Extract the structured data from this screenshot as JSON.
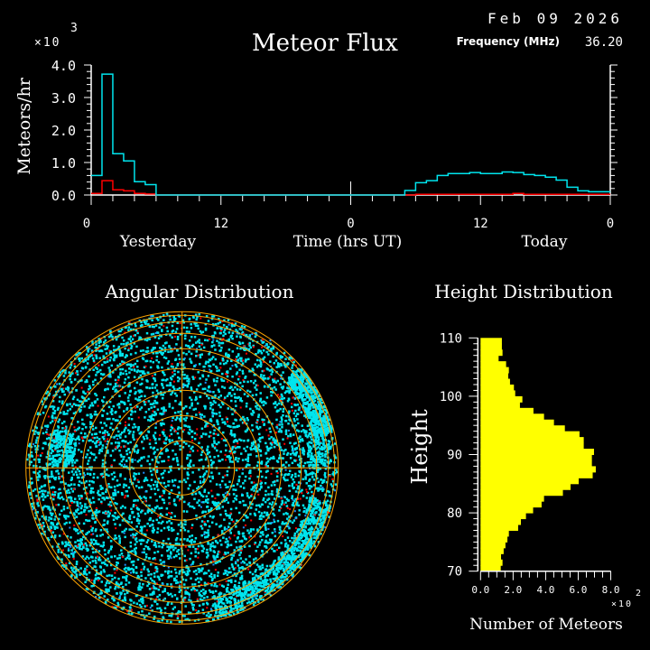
{
  "header": {
    "title": "Meteor Flux",
    "date": "Feb 09 2026",
    "frequency_label": "Frequency (MHz)",
    "frequency_value": "36.20",
    "y_multiplier": "×10",
    "y_multiplier_exp": "3"
  },
  "colors": {
    "background": "#000000",
    "total": "#00e5ee",
    "red_series": "#ff0000",
    "axis": "#ffffff",
    "rings": "#ffa500",
    "height_bars": "#ffff00",
    "blue_points": "#1e90ff"
  },
  "chart_data": [
    {
      "type": "line",
      "style": "step",
      "title": "Meteor Flux",
      "xlabel": "Time (hrs UT)",
      "ylabel": "Meteors/hr",
      "y_multiplier": "×10^3",
      "xlim": [
        0,
        48
      ],
      "ylim": [
        0,
        4.0
      ],
      "x_tick_labels": [
        "0",
        "12",
        "0",
        "12",
        "0"
      ],
      "x_ticks": [
        0,
        12,
        24,
        36,
        48
      ],
      "day_labels": [
        "Yesterday",
        "Today"
      ],
      "y_tick_labels": [
        "0.0",
        "1.0",
        "2.0",
        "3.0",
        "4.0"
      ],
      "grid": false,
      "bin_hours": 1,
      "series": [
        {
          "color": "#00e5ee",
          "values": [
            0.6,
            3.72,
            1.27,
            1.05,
            0.41,
            0.32,
            0,
            0,
            0,
            0,
            0,
            0,
            0,
            0,
            0,
            0,
            0,
            0,
            0,
            0,
            0,
            0,
            0,
            0,
            0,
            0,
            0,
            0,
            0,
            0.14,
            0.38,
            0.44,
            0.6,
            0.66,
            0.66,
            0.69,
            0.66,
            0.66,
            0.71,
            0.69,
            0.63,
            0.6,
            0.55,
            0.46,
            0.24,
            0.13,
            0.1,
            0.1
          ]
        },
        {
          "color": "#ff0000",
          "values": [
            0.05,
            0.44,
            0.16,
            0.13,
            0.05,
            0.03,
            0,
            0,
            0,
            0,
            0,
            0,
            0,
            0,
            0,
            0,
            0,
            0,
            0,
            0,
            0,
            0,
            0,
            0,
            0,
            0,
            0,
            0,
            0,
            0,
            0.02,
            0.02,
            0.02,
            0.02,
            0.02,
            0.02,
            0.02,
            0.02,
            0.02,
            0.05,
            0.02,
            0.02,
            0.02,
            0.02,
            0.02,
            0.02,
            0.02,
            0.02
          ]
        }
      ]
    },
    {
      "type": "scatter",
      "projection": "polar",
      "title": "Angular Distribution",
      "point_colors": [
        "#00e5ee",
        "#ff0000",
        "#1e90ff"
      ],
      "crosshair": true,
      "ring_color": "#ffa500"
    },
    {
      "type": "bar",
      "orientation": "horizontal",
      "title": "Height Distribution",
      "xlabel": "Number of Meteors",
      "ylabel": "Height",
      "x_multiplier": "×10^2",
      "xlim": [
        0,
        8.0
      ],
      "ylim": [
        70,
        110
      ],
      "x_tick_labels": [
        "0.0",
        "2.0",
        "4.0",
        "6.0",
        "8.0"
      ],
      "y_tick_labels": [
        "70",
        "80",
        "90",
        "100",
        "110"
      ],
      "bin_km": 1,
      "heights_from": 70,
      "values": [
        1.24,
        1.35,
        1.26,
        1.42,
        1.53,
        1.65,
        1.74,
        2.31,
        2.48,
        2.79,
        3.23,
        3.75,
        3.9,
        5.06,
        5.53,
        6.03,
        6.89,
        7.08,
        6.84,
        6.84,
        6.97,
        6.34,
        6.34,
        6.08,
        5.18,
        4.51,
        3.9,
        3.25,
        2.42,
        2.57,
        2.13,
        2.05,
        1.81,
        1.7,
        1.74,
        1.57,
        1.11,
        1.35,
        1.31,
        1.31
      ]
    }
  ],
  "angular": {
    "title": "Angular Distribution"
  },
  "height": {
    "title": "Height Distribution",
    "xlabel": "Number of Meteors",
    "ylabel": "Height",
    "x_multiplier": "×10",
    "x_multiplier_exp": "2"
  }
}
